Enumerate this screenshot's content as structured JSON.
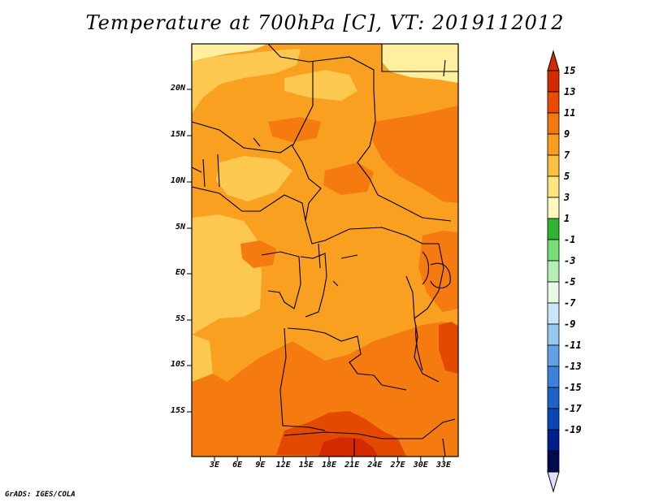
{
  "header": {
    "title": "Temperature at 700hPa [C], VT: 2019112012"
  },
  "map": {
    "lat_labels": [
      "20N",
      "15N",
      "10N",
      "5N",
      "EQ",
      "5S",
      "10S",
      "15S"
    ],
    "lon_labels": [
      "3E",
      "6E",
      "9E",
      "12E",
      "15E",
      "18E",
      "21E",
      "24E",
      "27E",
      "30E",
      "33E"
    ],
    "colors": {
      "c5_7": "#fff0a0",
      "c7_9": "#fcc850",
      "c9_11": "#f9a020",
      "c11_13": "#f57a10",
      "c13_15": "#e34a00",
      "c15_plus": "#d42a00",
      "border": "#000000"
    }
  },
  "colorbar": {
    "labels": [
      "15",
      "13",
      "11",
      "9",
      "7",
      "5",
      "3",
      "1",
      "-1",
      "-3",
      "-5",
      "-7",
      "-9",
      "-11",
      "-13",
      "-15",
      "-17",
      "-19"
    ],
    "colors": [
      "#d62a00",
      "#ec4a00",
      "#f47810",
      "#f99c20",
      "#fbc040",
      "#fde480",
      "#fef8c0",
      "#32b432",
      "#78dc78",
      "#b4f0b4",
      "#e6fae6",
      "#c8e6f8",
      "#96c8f0",
      "#64a0e6",
      "#3c82dc",
      "#1e64c8",
      "#0a46b4",
      "#001e8c",
      "#000a50"
    ],
    "arrow_top_color": "#d62a00",
    "arrow_bottom_color": "#e0e0f8"
  },
  "footer": {
    "credit": "GrADS: IGES/COLA"
  }
}
